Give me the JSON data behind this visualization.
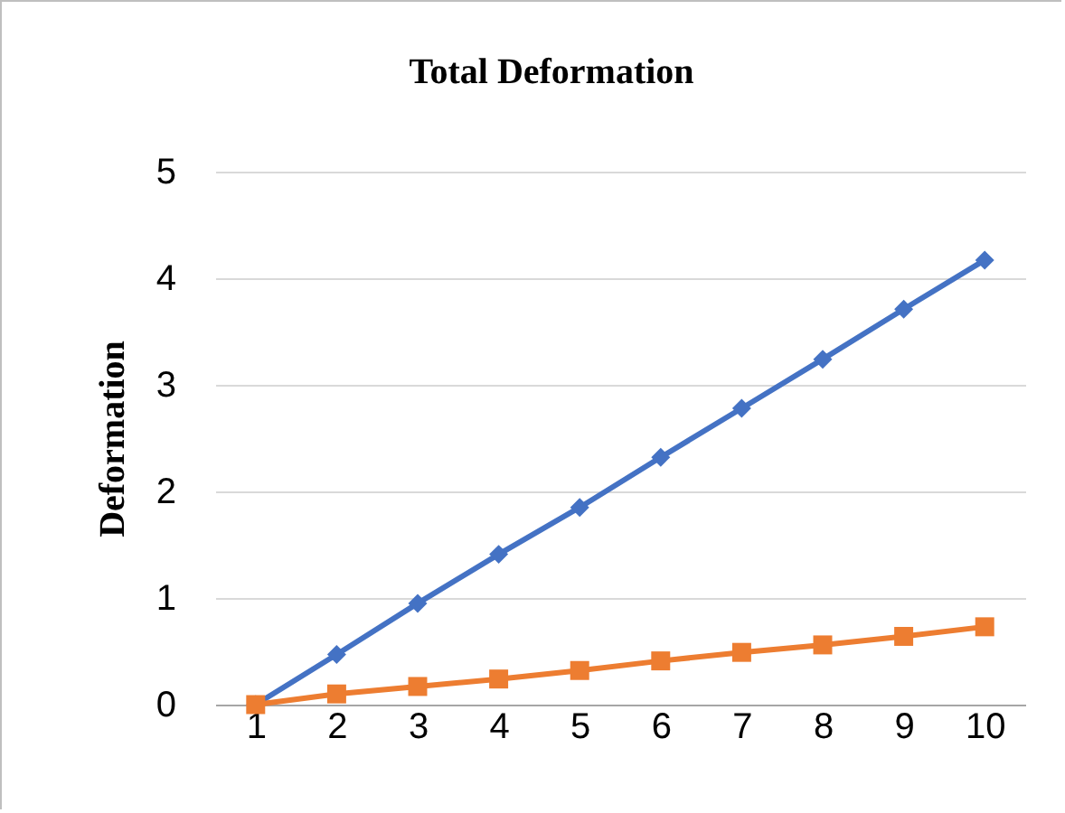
{
  "chart_data": {
    "type": "line",
    "title": "Total Deformation",
    "ylabel": "Deformation",
    "categories": [
      "1",
      "2",
      "3",
      "4",
      "5",
      "6",
      "7",
      "8",
      "9",
      "10"
    ],
    "ylim": [
      0,
      5
    ],
    "yticks": [
      0,
      1,
      2,
      3,
      4,
      5
    ],
    "grid": "y",
    "series": [
      {
        "color": "#4472c4",
        "marker": "diamond",
        "values": [
          0,
          0.47,
          0.95,
          1.41,
          1.85,
          2.32,
          2.78,
          3.24,
          3.71,
          4.17
        ]
      },
      {
        "color": "#ed7d31",
        "marker": "square",
        "values": [
          0,
          0.1,
          0.17,
          0.24,
          0.32,
          0.41,
          0.49,
          0.56,
          0.64,
          0.73
        ]
      }
    ]
  }
}
